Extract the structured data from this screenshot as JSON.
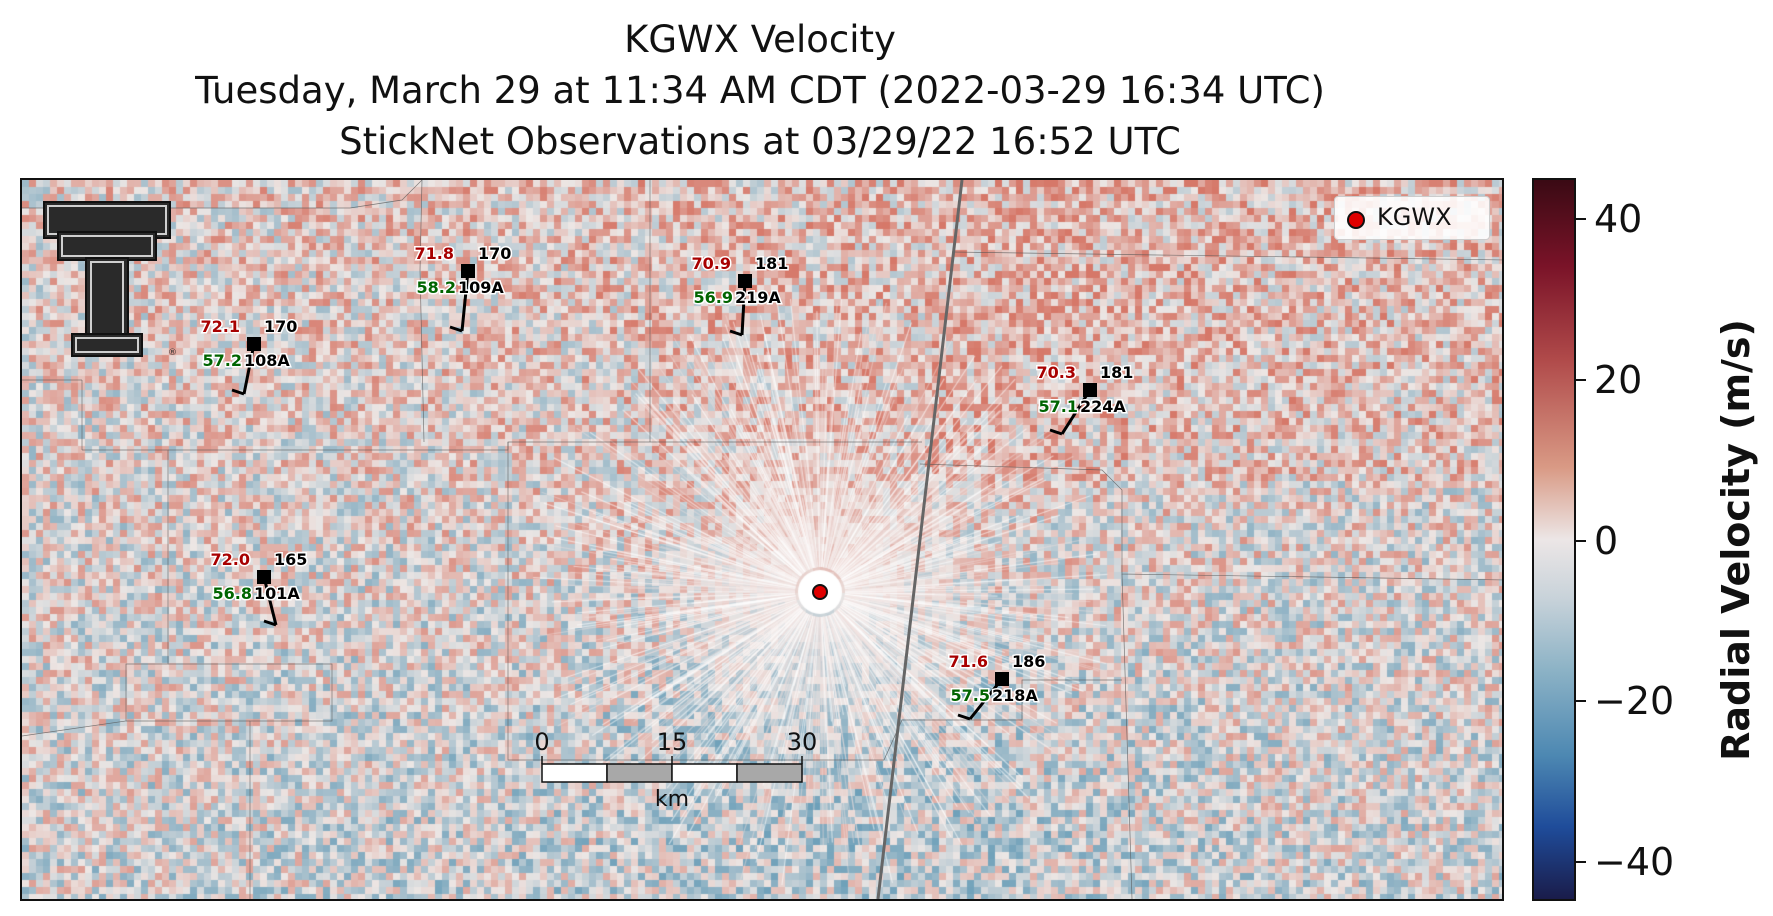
{
  "title": {
    "line1": "KGWX Velocity",
    "line2": "Tuesday, March 29 at 11:34 AM CDT (2022-03-29 16:34 UTC)",
    "line3": "StickNet Observations at 03/29/22 16:52 UTC"
  },
  "legend": {
    "label": "KGWX",
    "marker_color": "#e00000"
  },
  "colorbar": {
    "label": "Radial Velocity (m/s)",
    "range": [
      -45,
      45
    ],
    "ticks": [
      40,
      20,
      0,
      -20,
      -40
    ],
    "tick_labels": [
      "40",
      "20",
      "0",
      "−20",
      "−40"
    ],
    "colors": [
      "#3a0a14",
      "#b04a4a",
      "#ece6e6",
      "#8db3c6",
      "#1f4c9a",
      "#1a1c4a"
    ]
  },
  "scale_bar": {
    "ticks": [
      "0",
      "15",
      "30"
    ],
    "unit": "km"
  },
  "logo": {
    "name": "texas-tech-double-t-logo"
  },
  "chart_data": {
    "type": "scatter",
    "title": "KGWX Velocity",
    "description_lines": [
      "Tuesday, March 29 at 11:34 AM CDT (2022-03-29 16:34 UTC)",
      "StickNet Observations at 03/29/22 16:52 UTC"
    ],
    "radar_site": "KGWX",
    "colorbar_label": "Radial Velocity (m/s)",
    "colorbar_range": [
      -45,
      45
    ],
    "stations": [
      {
        "id": "108A",
        "temp": "72.1",
        "dewpoint": "57.2",
        "dir": "170"
      },
      {
        "id": "109A",
        "temp": "71.8",
        "dewpoint": "58.2",
        "dir": "170"
      },
      {
        "id": "219A",
        "temp": "70.9",
        "dewpoint": "56.9",
        "dir": "181"
      },
      {
        "id": "224A",
        "temp": "70.3",
        "dewpoint": "57.1",
        "dir": "181"
      },
      {
        "id": "101A",
        "temp": "72.0",
        "dewpoint": "56.8",
        "dir": "165"
      },
      {
        "id": "218A",
        "temp": "71.6",
        "dewpoint": "57.5",
        "dir": "186"
      }
    ],
    "colors": {
      "temp": "#a80000",
      "dewpoint": "#006400",
      "id": "#000000"
    }
  }
}
